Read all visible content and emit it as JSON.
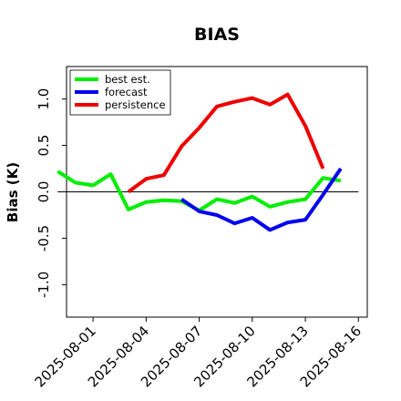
{
  "chart_data": {
    "type": "line",
    "title": "BIAS",
    "ylabel": "Bias (K)",
    "xlabel": "",
    "ylim": [
      -1.35,
      1.35
    ],
    "yticks": [
      -1.0,
      -0.5,
      0.0,
      0.5,
      1.0
    ],
    "ytick_labels": [
      "-1.0",
      "-0.5",
      "0.0",
      "0.5",
      "1.0"
    ],
    "xlim": [
      "2025-07-30T12:00",
      "2025-08-16T12:00"
    ],
    "xticks": [
      "2025-08-01",
      "2025-08-04",
      "2025-08-07",
      "2025-08-10",
      "2025-08-13",
      "2025-08-16"
    ],
    "xtick_labels": [
      "2025-08-01",
      "2025-08-04",
      "2025-08-07",
      "2025-08-10",
      "2025-08-13",
      "2025-08-16"
    ],
    "highlighted_xtick": "2025-08-07",
    "zero_line": 0.0,
    "legend_position": "top-left",
    "series": [
      {
        "name": "best est.",
        "color": "#00ee00",
        "points": [
          [
            "2025-07-30",
            0.22
          ],
          [
            "2025-07-31",
            0.1
          ],
          [
            "2025-08-01",
            0.07
          ],
          [
            "2025-08-02",
            0.19
          ],
          [
            "2025-08-03",
            -0.19
          ],
          [
            "2025-08-04",
            -0.11
          ],
          [
            "2025-08-05",
            -0.09
          ],
          [
            "2025-08-06",
            -0.1
          ],
          [
            "2025-08-07",
            -0.2
          ],
          [
            "2025-08-08",
            -0.08
          ],
          [
            "2025-08-09",
            -0.12
          ],
          [
            "2025-08-10",
            -0.05
          ],
          [
            "2025-08-11",
            -0.16
          ],
          [
            "2025-08-12",
            -0.11
          ],
          [
            "2025-08-13",
            -0.08
          ],
          [
            "2025-08-14",
            0.15
          ],
          [
            "2025-08-15",
            0.12
          ]
        ]
      },
      {
        "name": "forecast",
        "color": "#0000ee",
        "points": [
          [
            "2025-08-06",
            -0.08
          ],
          [
            "2025-08-07",
            -0.21
          ],
          [
            "2025-08-08",
            -0.25
          ],
          [
            "2025-08-09",
            -0.34
          ],
          [
            "2025-08-10",
            -0.28
          ],
          [
            "2025-08-11",
            -0.41
          ],
          [
            "2025-08-12",
            -0.33
          ],
          [
            "2025-08-13",
            -0.3
          ],
          [
            "2025-08-14",
            -0.03
          ],
          [
            "2025-08-15",
            0.25
          ]
        ]
      },
      {
        "name": "persistence",
        "color": "#ee0000",
        "points": [
          [
            "2025-08-03",
            0.0
          ],
          [
            "2025-08-04",
            0.14
          ],
          [
            "2025-08-05",
            0.18
          ],
          [
            "2025-08-06",
            0.49
          ],
          [
            "2025-08-07",
            0.69
          ],
          [
            "2025-08-08",
            0.92
          ],
          [
            "2025-08-09",
            0.97
          ],
          [
            "2025-08-10",
            1.01
          ],
          [
            "2025-08-11",
            0.94
          ],
          [
            "2025-08-12",
            1.05
          ],
          [
            "2025-08-13",
            0.71
          ],
          [
            "2025-08-14",
            0.25
          ]
        ]
      }
    ]
  }
}
